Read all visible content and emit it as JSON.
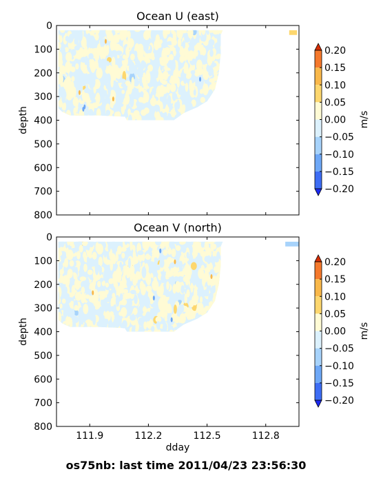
{
  "footer": "os75nb: last time 2011/04/23 23:56:30",
  "colorbar": {
    "label": "m/s",
    "levels": [
      "0.20",
      "0.15",
      "0.10",
      "0.05",
      "0.00",
      "−0.05",
      "−0.10",
      "−0.15",
      "−0.20"
    ],
    "colors": [
      "#d62f06",
      "#f5792c",
      "#f9b84a",
      "#fdd76e",
      "#fffbd5",
      "#dcf1fd",
      "#a7d3fb",
      "#6ea8f7",
      "#3d6df4",
      "#1b29ef"
    ],
    "extend": "both"
  },
  "chart_data": [
    {
      "type": "heatmap",
      "title": "Ocean U (east)",
      "xlabel": "",
      "ylabel": "depth",
      "colorbar_label": "m/s",
      "xlim": [
        111.73,
        112.97
      ],
      "ylim": [
        800,
        0
      ],
      "x_ticks": [],
      "y_ticks": [
        0,
        100,
        200,
        300,
        400,
        500,
        600,
        700,
        800
      ],
      "data_region_profile": [
        {
          "dday": 111.74,
          "max_depth": 350
        },
        {
          "dday": 111.76,
          "max_depth": 365
        },
        {
          "dday": 111.8,
          "max_depth": 380
        },
        {
          "dday": 111.95,
          "max_depth": 380
        },
        {
          "dday": 112.08,
          "max_depth": 385
        },
        {
          "dday": 112.09,
          "max_depth": 400
        },
        {
          "dday": 112.33,
          "max_depth": 400
        },
        {
          "dday": 112.38,
          "max_depth": 370
        },
        {
          "dday": 112.45,
          "max_depth": 345
        },
        {
          "dday": 112.5,
          "max_depth": 320
        },
        {
          "dday": 112.54,
          "max_depth": 270
        },
        {
          "dday": 112.56,
          "max_depth": 200
        },
        {
          "dday": 112.57,
          "max_depth": 120
        },
        {
          "dday": 112.57,
          "max_depth": 40
        },
        {
          "dday": 112.58,
          "max_depth": 20
        }
      ],
      "min_depth": 20,
      "isolated_patch": {
        "dday_start": 112.92,
        "dday_end": 112.96,
        "depth_start": 20,
        "depth_end": 40,
        "color": "#fdd76e"
      }
    },
    {
      "type": "heatmap",
      "title": "Ocean V (north)",
      "xlabel": "dday",
      "ylabel": "depth",
      "colorbar_label": "m/s",
      "xlim": [
        111.73,
        112.97
      ],
      "ylim": [
        800,
        0
      ],
      "x_ticks": [
        "111.9",
        "112.2",
        "112.5",
        "112.8"
      ],
      "y_ticks": [
        0,
        100,
        200,
        300,
        400,
        500,
        600,
        700,
        800
      ],
      "data_region_profile": [
        {
          "dday": 111.74,
          "max_depth": 350
        },
        {
          "dday": 111.76,
          "max_depth": 365
        },
        {
          "dday": 111.8,
          "max_depth": 380
        },
        {
          "dday": 111.95,
          "max_depth": 380
        },
        {
          "dday": 112.08,
          "max_depth": 385
        },
        {
          "dday": 112.09,
          "max_depth": 400
        },
        {
          "dday": 112.33,
          "max_depth": 400
        },
        {
          "dday": 112.38,
          "max_depth": 370
        },
        {
          "dday": 112.45,
          "max_depth": 345
        },
        {
          "dday": 112.5,
          "max_depth": 320
        },
        {
          "dday": 112.54,
          "max_depth": 270
        },
        {
          "dday": 112.56,
          "max_depth": 200
        },
        {
          "dday": 112.57,
          "max_depth": 120
        },
        {
          "dday": 112.57,
          "max_depth": 40
        },
        {
          "dday": 112.58,
          "max_depth": 20
        }
      ],
      "min_depth": 20,
      "isolated_patch": {
        "dday_start": 112.9,
        "dday_end": 112.97,
        "depth_start": 20,
        "depth_end": 40,
        "color": "#a7d3fb"
      }
    }
  ]
}
